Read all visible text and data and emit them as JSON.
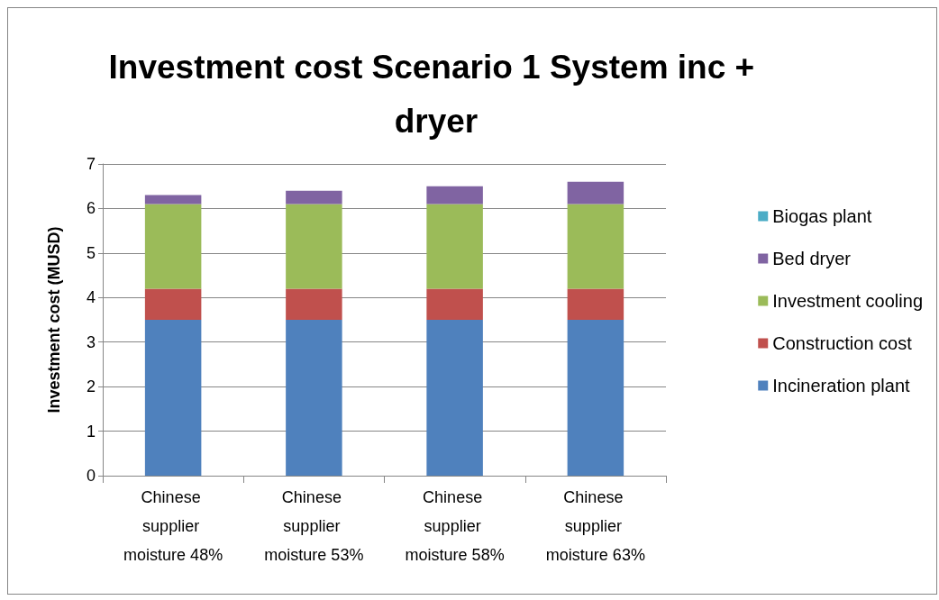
{
  "chart_data": {
    "type": "bar",
    "title": "Investment cost Scenario 1 System inc + dryer",
    "ylabel": "Investment cost (MUSD)",
    "categories": [
      "Chinese supplier moisture 48%",
      "Chinese supplier moisture 53%",
      "Chinese supplier moisture 58%",
      "Chinese supplier moisture 63%"
    ],
    "stacked": true,
    "series": [
      {
        "name": "Incineration plant",
        "color": "#4f81bd",
        "values": [
          3.5,
          3.5,
          3.5,
          3.5
        ]
      },
      {
        "name": "Construction cost",
        "color": "#c0504d",
        "values": [
          0.7,
          0.7,
          0.7,
          0.7
        ]
      },
      {
        "name": "Investment cooling",
        "color": "#9bbb59",
        "values": [
          1.9,
          1.9,
          1.9,
          1.9
        ]
      },
      {
        "name": "Bed dryer",
        "color": "#8064a2",
        "values": [
          0.2,
          0.3,
          0.4,
          0.5
        ]
      },
      {
        "name": "Biogas plant",
        "color": "#4bacc6",
        "values": [
          0,
          0,
          0,
          0
        ]
      }
    ],
    "ylim": [
      0,
      7
    ],
    "yticks": [
      0,
      1,
      2,
      3,
      4,
      5,
      6,
      7
    ],
    "grid": "y",
    "legend": "right"
  }
}
